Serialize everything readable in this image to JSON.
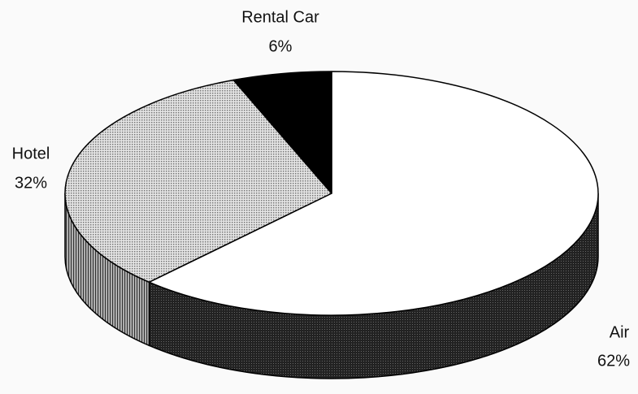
{
  "chart_data": {
    "type": "pie",
    "categories": [
      "Air",
      "Hotel",
      "Rental Car"
    ],
    "values": [
      62,
      32,
      6
    ],
    "value_labels": [
      "62%",
      "32%",
      "6%"
    ],
    "colors": [
      "#ffffff",
      "#c4c4c4",
      "#000000"
    ],
    "side_colors": [
      "#2e2e2e",
      "#8a8a8a",
      "#000000"
    ]
  }
}
